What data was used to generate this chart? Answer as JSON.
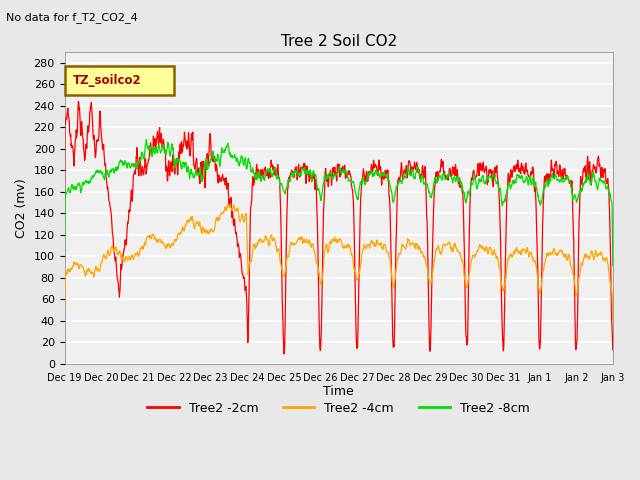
{
  "title": "Tree 2 Soil CO2",
  "subtitle": "No data for f_T2_CO2_4",
  "ylabel": "CO2 (mv)",
  "xlabel": "Time",
  "legend_label": "TZ_soilco2",
  "ylim": [
    0,
    290
  ],
  "yticks": [
    0,
    20,
    40,
    60,
    80,
    100,
    120,
    140,
    160,
    180,
    200,
    220,
    240,
    260,
    280
  ],
  "series": {
    "red": {
      "label": "Tree2 -2cm",
      "color": "#FF0000"
    },
    "orange": {
      "label": "Tree2 -4cm",
      "color": "#FFA500"
    },
    "green": {
      "label": "Tree2 -8cm",
      "color": "#00DD00"
    }
  },
  "bg_color": "#F0F0F0",
  "grid_color": "#FFFFFF",
  "xtick_labels": [
    "Dec 19",
    "Dec 20",
    "Dec 21",
    "Dec 22",
    "Dec 23",
    "Dec 24",
    "Dec 25",
    "Dec 26",
    "Dec 27",
    "Dec 28",
    "Dec 29",
    "Dec 30",
    "Dec 31",
    "Jan 1",
    "Jan 2",
    "Jan 3"
  ],
  "num_points": 1500
}
